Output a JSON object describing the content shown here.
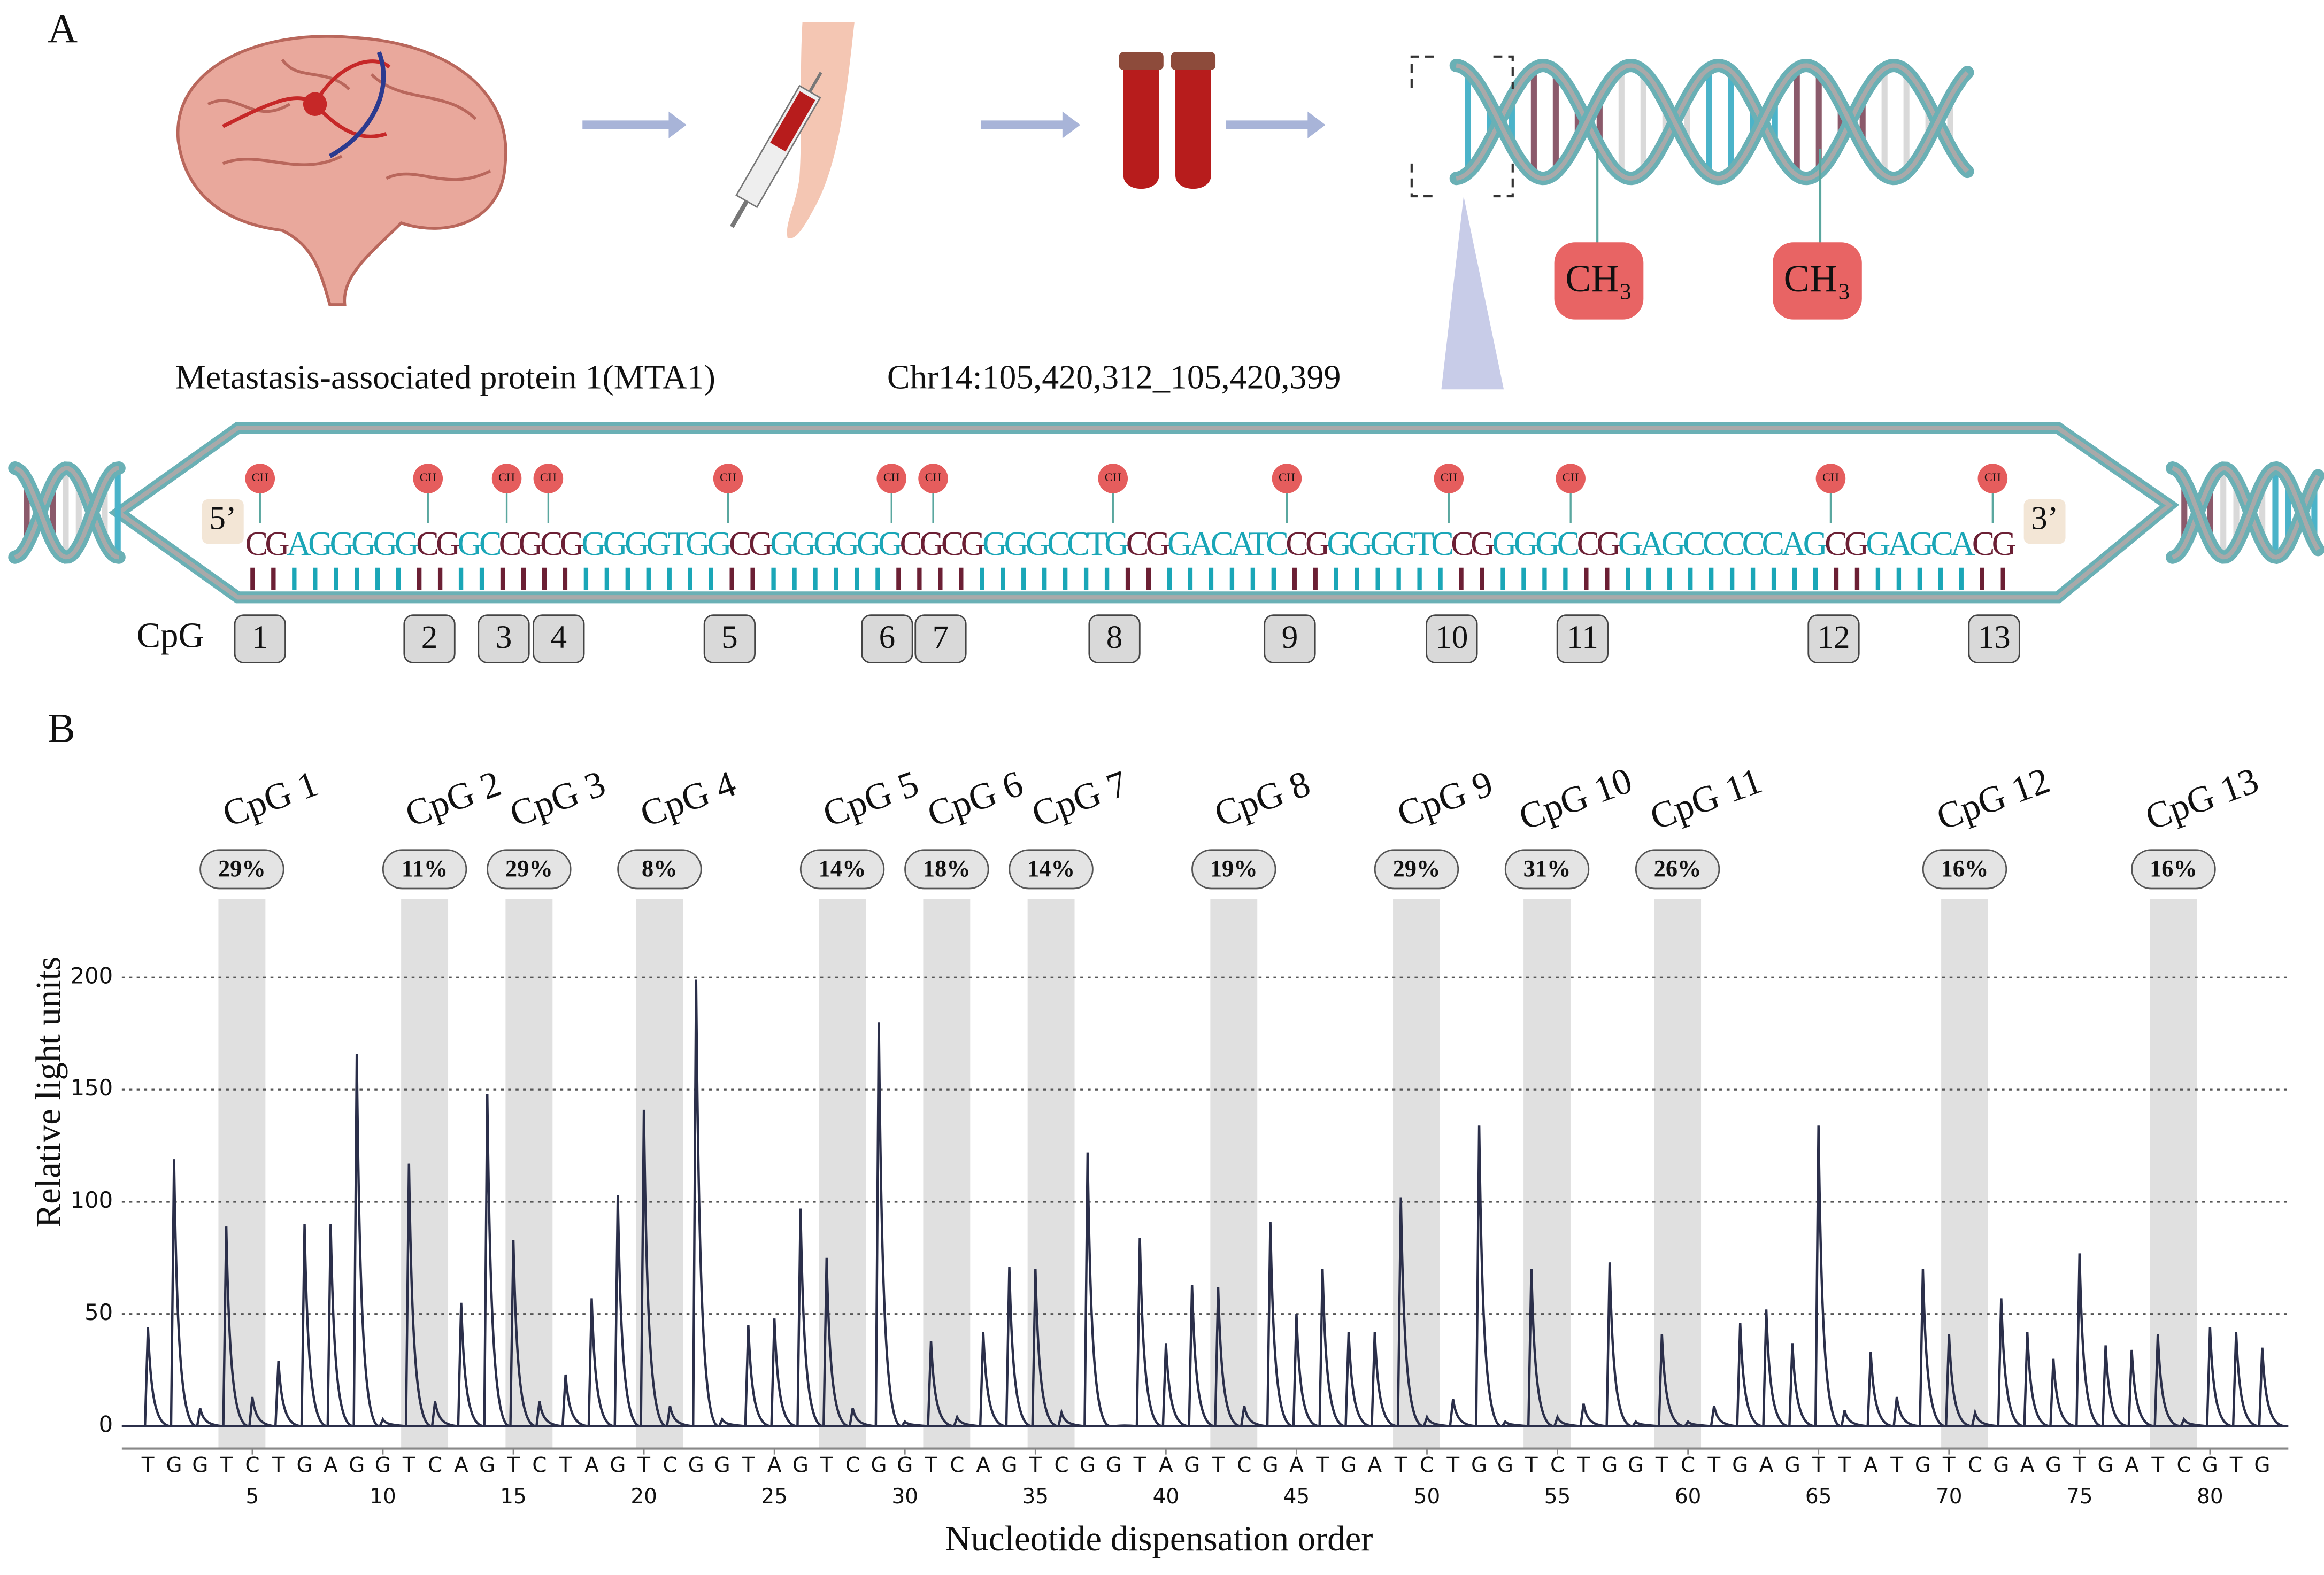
{
  "panel_a": {
    "label": "A",
    "gene": "Metastasis-associated protein 1(MTA1)",
    "locus": "Chr14:105,420,312_105,420,399",
    "methyl_group": "CH₃",
    "methyl_small": "CH",
    "five_prime": "5’",
    "three_prime": "3’",
    "sequence": [
      {
        "text": "CG",
        "color": "#6b1f34"
      },
      {
        "text": "AGGGGG",
        "color": "#1aa6b7"
      },
      {
        "text": "CG",
        "color": "#6b1f34"
      },
      {
        "text": "GC",
        "color": "#1aa6b7"
      },
      {
        "text": "CG",
        "color": "#6b1f34"
      },
      {
        "text": "CG",
        "color": "#6b1f34"
      },
      {
        "text": "GGGGTGG",
        "color": "#1aa6b7"
      },
      {
        "text": "CG",
        "color": "#6b1f34"
      },
      {
        "text": "GGGGGG",
        "color": "#1aa6b7"
      },
      {
        "text": "CG",
        "color": "#6b1f34"
      },
      {
        "text": "CG",
        "color": "#6b1f34"
      },
      {
        "text": "GGGCCTG",
        "color": "#1aa6b7"
      },
      {
        "text": "CG",
        "color": "#6b1f34"
      },
      {
        "text": "GACATC",
        "color": "#1aa6b7"
      },
      {
        "text": "CG",
        "color": "#6b1f34"
      },
      {
        "text": "GGGGTC",
        "color": "#1aa6b7"
      },
      {
        "text": "CG",
        "color": "#6b1f34"
      },
      {
        "text": "GGGC",
        "color": "#1aa6b7"
      },
      {
        "text": "CG",
        "color": "#6b1f34"
      },
      {
        "text": "GAGCCCCCAG",
        "color": "#1aa6b7"
      },
      {
        "text": "CG",
        "color": "#6b1f34"
      },
      {
        "text": "GAGCA",
        "color": "#1aa6b7"
      },
      {
        "text": "CG",
        "color": "#6b1f34"
      }
    ],
    "cpg_row_label": "CpG",
    "cpg_numbers": [
      1,
      2,
      3,
      4,
      5,
      6,
      7,
      8,
      9,
      10,
      11,
      12,
      13
    ]
  },
  "chart_data": {
    "type": "pyrogram",
    "panel_label": "B",
    "ylabel": "Relative light units",
    "xlabel": "Nucleotide dispensation order",
    "x": [
      1,
      2,
      3,
      4,
      5,
      6,
      7,
      8,
      9,
      10,
      11,
      12,
      13,
      14,
      15,
      16,
      17,
      18,
      19,
      20,
      21,
      22,
      23,
      24,
      25,
      26,
      27,
      28,
      29,
      30,
      31,
      32,
      33,
      34,
      35,
      36,
      37,
      38,
      39,
      40,
      41,
      42,
      43,
      44,
      45,
      46,
      47,
      48,
      49,
      50,
      51,
      52,
      53,
      54,
      55,
      56,
      57,
      58,
      59,
      60,
      61,
      62,
      63,
      64,
      65,
      66,
      67,
      68,
      69,
      70,
      71,
      72,
      73,
      74,
      75,
      76,
      77,
      78,
      79,
      80,
      81,
      82
    ],
    "dispensations": [
      "T",
      "G",
      "G",
      "T",
      "C",
      "T",
      "G",
      "A",
      "G",
      "G",
      "T",
      "C",
      "A",
      "G",
      "T",
      "C",
      "T",
      "A",
      "G",
      "T",
      "C",
      "G",
      "G",
      "T",
      "A",
      "G",
      "T",
      "C",
      "G",
      "G",
      "T",
      "C",
      "A",
      "G",
      "T",
      "C",
      "G",
      "G",
      "T",
      "A",
      "G",
      "T",
      "C",
      "G",
      "A",
      "T",
      "G",
      "A",
      "T",
      "C",
      "T",
      "G",
      "G",
      "T",
      "C",
      "T",
      "G",
      "G",
      "T",
      "C",
      "T",
      "G",
      "A",
      "G",
      "T",
      "T",
      "A",
      "T",
      "G",
      "T",
      "C",
      "G",
      "A",
      "G",
      "T",
      "G",
      "A",
      "T",
      "C",
      "G",
      "T",
      "G"
    ],
    "values": [
      44,
      119,
      8,
      89,
      13,
      29,
      90,
      90,
      166,
      3,
      117,
      11,
      55,
      148,
      83,
      11,
      23,
      57,
      103,
      141,
      9,
      199,
      3,
      45,
      48,
      97,
      75,
      8,
      180,
      2,
      38,
      4,
      42,
      71,
      70,
      6,
      122,
      0,
      84,
      37,
      63,
      62,
      9,
      91,
      50,
      70,
      42,
      42,
      102,
      4,
      12,
      134,
      2,
      70,
      4,
      10,
      73,
      2,
      41,
      2,
      9,
      46,
      52,
      37,
      134,
      7,
      33,
      13,
      70,
      41,
      6,
      57,
      42,
      30,
      77,
      36,
      34,
      41,
      3,
      44,
      42,
      35
    ],
    "color": "#2b2f4a",
    "xlim": [
      0,
      83
    ],
    "ylim": [
      -10,
      235
    ],
    "xticks": [
      5,
      10,
      15,
      20,
      25,
      30,
      35,
      40,
      45,
      50,
      55,
      60,
      65,
      70,
      75,
      80
    ],
    "yticks": [
      0,
      50,
      100,
      150,
      200
    ],
    "grid": true,
    "cpg": {
      "names": [
        "CpG 1",
        "CpG 2",
        "CpG 3",
        "CpG 4",
        "CpG 5",
        "CpG 6",
        "CpG 7",
        "CpG 8",
        "CpG 9",
        "CpG 10",
        "CpG 11",
        "CpG 12",
        "CpG 13"
      ],
      "start": [
        4,
        11,
        15,
        20,
        27,
        31,
        35,
        42,
        49,
        54,
        59,
        70,
        78
      ],
      "end": [
        5,
        12,
        16,
        21,
        28,
        32,
        36,
        43,
        50,
        55,
        60,
        71,
        79
      ],
      "values": [
        29,
        11,
        29,
        8,
        14,
        18,
        14,
        19,
        29,
        31,
        26,
        16,
        16
      ],
      "value_labels": [
        "29%",
        "11%",
        "29%",
        "8%",
        "14%",
        "18%",
        "14%",
        "19%",
        "29%",
        "31%",
        "26%",
        "16%",
        "16%"
      ],
      "color": "#e0e0e0"
    }
  }
}
